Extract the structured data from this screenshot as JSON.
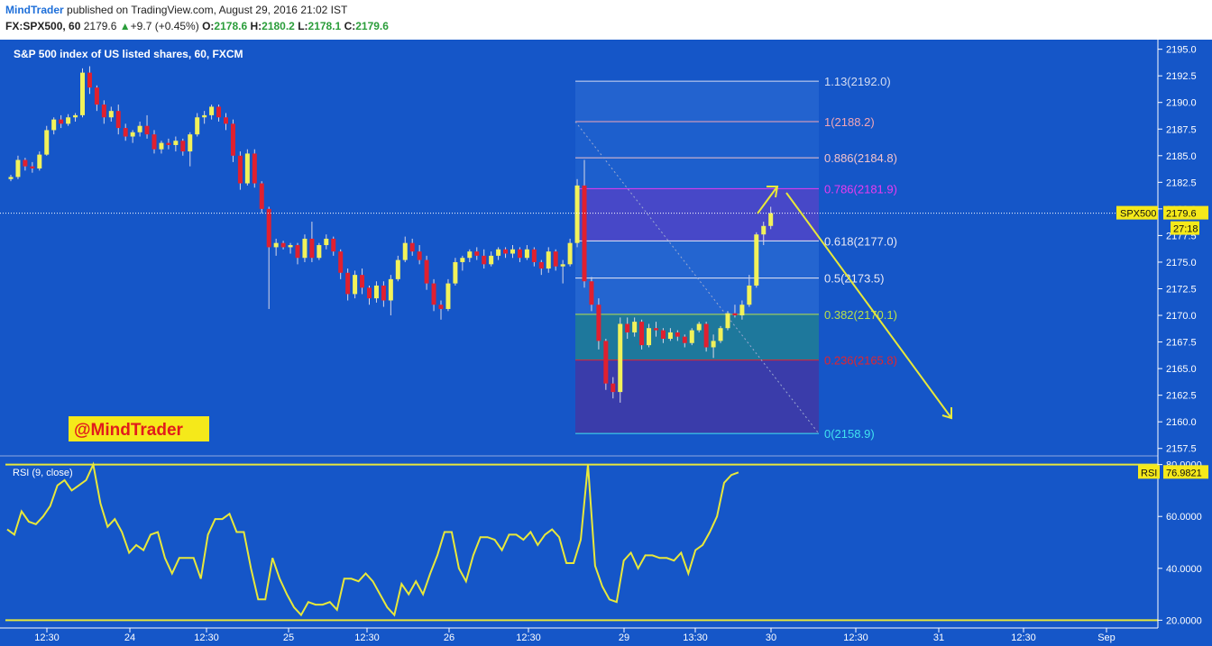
{
  "header": {
    "author": "MindTrader",
    "published_text": " published on TradingView.com, August 29, 2016 21:02 IST",
    "symbol_line": "FX:SPX500, 60",
    "last": "2179.6",
    "change_arrow": "▲",
    "change": "+9.7 (+0.45%)",
    "o_label": "O:",
    "o_value": "2178.6",
    "h_label": "H:",
    "h_value": "2180.2",
    "l_label": "L:",
    "l_value": "2178.1",
    "c_label": "C:",
    "c_value": "2179.6"
  },
  "colors": {
    "background": "#1556c8",
    "candle_up": "#f2f25a",
    "candle_down": "#e0202f",
    "rsi_line": "#e8e83a",
    "fib_zone_upper": "#2f6fd6",
    "fib_zone_786_618": "#4a48c8",
    "fib_zone_382_236": "#1f7a9a",
    "fib_zone_lower": "#3e3aa6",
    "arrow": "#e8e83a",
    "tag_bg": "#f5e91a",
    "tag_fg": "#e11c1c"
  },
  "watermark": "@MindTrader",
  "chart_data": [
    {
      "type": "candlestick",
      "title": "S&P 500 index of US listed shares, 60, FXCM",
      "ylim": [
        2156.8,
        2195.9
      ],
      "y_ticks": [
        "2195.0",
        "2192.5",
        "2190.0",
        "2187.5",
        "2185.0",
        "2182.5",
        "2180.0",
        "2177.5",
        "2175.0",
        "2172.5",
        "2170.0",
        "2167.5",
        "2165.0",
        "2162.5",
        "2160.0",
        "2157.5"
      ],
      "x_ticks": [
        "12:30",
        "24",
        "12:30",
        "25",
        "12:30",
        "26",
        "12:30",
        "29",
        "13:30",
        "30",
        "12:30",
        "31",
        "12:30",
        "Sep"
      ],
      "last_price_label": "SPX500",
      "last_price": "2179.6",
      "countdown": "27:18",
      "candles": [
        [
          2182.8,
          2183.2,
          2182.6,
          2183.0
        ],
        [
          2183.0,
          2185.0,
          2182.8,
          2184.6
        ],
        [
          2184.6,
          2184.8,
          2183.6,
          2184.0
        ],
        [
          2184.0,
          2184.4,
          2183.4,
          2183.8
        ],
        [
          2183.8,
          2185.4,
          2183.6,
          2185.1
        ],
        [
          2185.1,
          2187.8,
          2185.0,
          2187.4
        ],
        [
          2187.4,
          2188.6,
          2187.0,
          2188.4
        ],
        [
          2188.4,
          2188.8,
          2187.6,
          2188.0
        ],
        [
          2188.0,
          2188.9,
          2187.8,
          2188.6
        ],
        [
          2188.6,
          2189.0,
          2188.2,
          2188.8
        ],
        [
          2188.8,
          2193.2,
          2188.6,
          2192.8
        ],
        [
          2192.8,
          2193.4,
          2190.8,
          2191.4
        ],
        [
          2191.4,
          2191.6,
          2189.2,
          2189.8
        ],
        [
          2189.8,
          2190.2,
          2188.0,
          2188.6
        ],
        [
          2188.6,
          2189.6,
          2188.2,
          2189.2
        ],
        [
          2189.2,
          2189.8,
          2187.0,
          2187.6
        ],
        [
          2187.6,
          2188.0,
          2186.4,
          2186.8
        ],
        [
          2186.8,
          2187.4,
          2186.2,
          2187.2
        ],
        [
          2187.2,
          2188.2,
          2186.8,
          2187.8
        ],
        [
          2187.8,
          2188.8,
          2186.6,
          2187.0
        ],
        [
          2187.0,
          2187.4,
          2185.2,
          2185.6
        ],
        [
          2185.6,
          2186.4,
          2185.2,
          2186.2
        ],
        [
          2186.2,
          2186.6,
          2185.6,
          2186.0
        ],
        [
          2186.0,
          2186.8,
          2185.4,
          2186.4
        ],
        [
          2186.4,
          2186.6,
          2185.0,
          2185.4
        ],
        [
          2185.4,
          2187.2,
          2184.0,
          2187.0
        ],
        [
          2187.0,
          2189.0,
          2186.8,
          2188.6
        ],
        [
          2188.6,
          2189.2,
          2188.0,
          2188.8
        ],
        [
          2188.8,
          2189.8,
          2188.4,
          2189.6
        ],
        [
          2189.6,
          2189.8,
          2188.2,
          2188.6
        ],
        [
          2188.6,
          2189.0,
          2187.4,
          2188.0
        ],
        [
          2188.0,
          2188.4,
          2184.4,
          2185.0
        ],
        [
          2185.0,
          2185.4,
          2181.8,
          2182.4
        ],
        [
          2182.4,
          2185.6,
          2182.2,
          2185.2
        ],
        [
          2185.2,
          2185.6,
          2182.0,
          2182.4
        ],
        [
          2182.4,
          2182.6,
          2179.6,
          2180.0
        ],
        [
          2180.0,
          2180.2,
          2170.6,
          2176.4
        ],
        [
          2176.4,
          2177.2,
          2175.6,
          2176.8
        ],
        [
          2176.8,
          2177.0,
          2176.2,
          2176.4
        ],
        [
          2176.4,
          2176.8,
          2175.8,
          2176.6
        ],
        [
          2176.6,
          2176.8,
          2174.8,
          2175.4
        ],
        [
          2175.4,
          2177.6,
          2175.0,
          2177.2
        ],
        [
          2177.2,
          2178.8,
          2175.0,
          2175.4
        ],
        [
          2175.4,
          2176.8,
          2175.2,
          2176.6
        ],
        [
          2176.6,
          2177.6,
          2176.2,
          2177.2
        ],
        [
          2177.2,
          2177.4,
          2175.6,
          2176.0
        ],
        [
          2176.0,
          2176.2,
          2173.4,
          2174.0
        ],
        [
          2174.0,
          2174.4,
          2171.4,
          2172.0
        ],
        [
          2172.0,
          2174.2,
          2171.6,
          2173.8
        ],
        [
          2173.8,
          2174.4,
          2172.0,
          2172.6
        ],
        [
          2172.6,
          2172.8,
          2171.0,
          2171.6
        ],
        [
          2171.6,
          2173.2,
          2171.2,
          2172.8
        ],
        [
          2172.8,
          2173.2,
          2170.8,
          2171.4
        ],
        [
          2171.4,
          2173.8,
          2170.0,
          2173.4
        ],
        [
          2173.4,
          2175.6,
          2173.2,
          2175.2
        ],
        [
          2175.2,
          2177.4,
          2175.0,
          2176.8
        ],
        [
          2176.8,
          2177.2,
          2175.6,
          2176.0
        ],
        [
          2176.0,
          2176.6,
          2174.8,
          2175.2
        ],
        [
          2175.2,
          2175.6,
          2172.4,
          2173.0
        ],
        [
          2173.0,
          2173.4,
          2170.4,
          2171.0
        ],
        [
          2171.0,
          2171.4,
          2169.6,
          2170.6
        ],
        [
          2170.6,
          2173.4,
          2170.4,
          2173.0
        ],
        [
          2173.0,
          2175.4,
          2172.8,
          2175.0
        ],
        [
          2175.0,
          2175.6,
          2174.2,
          2175.4
        ],
        [
          2175.4,
          2176.2,
          2175.0,
          2176.0
        ],
        [
          2176.0,
          2176.4,
          2175.2,
          2175.6
        ],
        [
          2175.6,
          2176.2,
          2174.4,
          2174.8
        ],
        [
          2174.8,
          2176.0,
          2174.6,
          2175.6
        ],
        [
          2175.6,
          2176.4,
          2175.2,
          2176.2
        ],
        [
          2176.2,
          2176.4,
          2175.4,
          2175.8
        ],
        [
          2175.8,
          2176.6,
          2175.4,
          2176.2
        ],
        [
          2176.2,
          2176.4,
          2175.0,
          2175.4
        ],
        [
          2175.4,
          2176.6,
          2175.2,
          2176.2
        ],
        [
          2176.2,
          2176.4,
          2174.6,
          2175.0
        ],
        [
          2175.0,
          2175.2,
          2173.8,
          2174.4
        ],
        [
          2174.4,
          2176.4,
          2174.0,
          2176.0
        ],
        [
          2176.0,
          2176.2,
          2174.2,
          2174.6
        ],
        [
          2174.6,
          2175.2,
          2173.0,
          2174.8
        ],
        [
          2174.8,
          2177.2,
          2174.6,
          2176.8
        ],
        [
          2176.8,
          2182.8,
          2176.4,
          2182.2
        ],
        [
          2182.2,
          2184.6,
          2172.6,
          2173.2
        ],
        [
          2173.2,
          2173.6,
          2170.4,
          2171.0
        ],
        [
          2171.0,
          2171.6,
          2166.8,
          2167.6
        ],
        [
          2167.6,
          2167.8,
          2163.0,
          2163.6
        ],
        [
          2163.6,
          2164.2,
          2162.2,
          2162.8
        ],
        [
          2162.8,
          2169.8,
          2161.8,
          2169.2
        ],
        [
          2169.2,
          2169.8,
          2167.8,
          2168.4
        ],
        [
          2168.4,
          2169.8,
          2168.0,
          2169.4
        ],
        [
          2169.4,
          2169.6,
          2166.8,
          2167.2
        ],
        [
          2167.2,
          2169.2,
          2167.0,
          2168.8
        ],
        [
          2168.8,
          2169.4,
          2168.0,
          2168.6
        ],
        [
          2168.6,
          2168.8,
          2167.4,
          2167.8
        ],
        [
          2167.8,
          2168.8,
          2167.6,
          2168.4
        ],
        [
          2168.4,
          2168.6,
          2167.6,
          2168.0
        ],
        [
          2168.0,
          2168.2,
          2167.0,
          2167.4
        ],
        [
          2167.4,
          2168.8,
          2167.2,
          2168.6
        ],
        [
          2168.6,
          2169.4,
          2168.4,
          2169.2
        ],
        [
          2169.2,
          2169.4,
          2166.6,
          2167.0
        ],
        [
          2167.0,
          2168.2,
          2166.0,
          2167.6
        ],
        [
          2167.6,
          2169.0,
          2167.4,
          2168.8
        ],
        [
          2168.8,
          2170.4,
          2168.6,
          2170.2
        ],
        [
          2170.2,
          2171.0,
          2169.8,
          2170.0
        ],
        [
          2170.0,
          2171.4,
          2169.6,
          2171.0
        ],
        [
          2171.0,
          2173.8,
          2170.8,
          2172.8
        ],
        [
          2172.8,
          2177.8,
          2172.6,
          2177.6
        ],
        [
          2177.6,
          2178.8,
          2176.6,
          2178.4
        ],
        [
          2178.4,
          2180.2,
          2178.1,
          2179.6
        ]
      ]
    },
    {
      "type": "fibonacci_retracement",
      "levels": [
        {
          "label": "1.13(2192.0)",
          "value": 2192.0,
          "color": "#d4dcf2"
        },
        {
          "label": "1(2188.2)",
          "value": 2188.2,
          "color": "#f0a6b6"
        },
        {
          "label": "0.886(2184.8)",
          "value": 2184.8,
          "color": "#f2c2cc"
        },
        {
          "label": "0.786(2181.9)",
          "value": 2181.9,
          "color": "#e93bf0"
        },
        {
          "label": "0.618(2177.0)",
          "value": 2177.0,
          "color": "#e8e8f4"
        },
        {
          "label": "0.5(2173.5)",
          "value": 2173.5,
          "color": "#e8e8f4"
        },
        {
          "label": "0.382(2170.1)",
          "value": 2170.1,
          "color": "#b8e04a"
        },
        {
          "label": "0.236(2165.8)",
          "value": 2165.8,
          "color": "#e2242f"
        },
        {
          "label": "0(2158.9)",
          "value": 2158.9,
          "color": "#41e2f0"
        }
      ]
    },
    {
      "type": "line",
      "title": "RSI (9, close)",
      "series": [
        {
          "name": "RSI",
          "values": [
            55,
            53,
            62,
            58,
            57,
            60,
            64,
            72,
            74,
            70,
            72,
            74,
            80,
            65,
            56,
            59,
            54,
            46,
            49,
            47,
            53,
            54,
            44,
            38,
            44,
            44,
            44,
            36,
            53,
            59,
            59,
            61,
            54,
            54,
            40,
            28,
            28,
            44,
            36,
            30,
            25,
            22,
            27,
            26,
            26,
            27,
            24,
            36,
            36,
            35,
            38,
            35,
            30,
            25,
            22,
            34,
            30,
            35,
            30,
            38,
            45,
            54,
            54,
            40,
            35,
            45,
            52,
            52,
            51,
            47,
            53,
            53,
            51,
            54,
            49,
            53,
            55,
            52,
            42,
            42,
            51,
            80,
            41,
            33,
            28,
            27,
            43,
            46,
            40,
            45,
            45,
            44,
            44,
            43,
            46,
            38,
            47,
            49,
            54,
            60,
            73,
            76,
            77
          ]
        }
      ],
      "ylim": [
        17,
        83
      ],
      "y_ticks": [
        "80.0000",
        "60.0000",
        "40.0000",
        "20.0000"
      ],
      "bands": [
        80,
        20
      ],
      "last_label": "RSI",
      "last_value": "76.9821"
    }
  ]
}
